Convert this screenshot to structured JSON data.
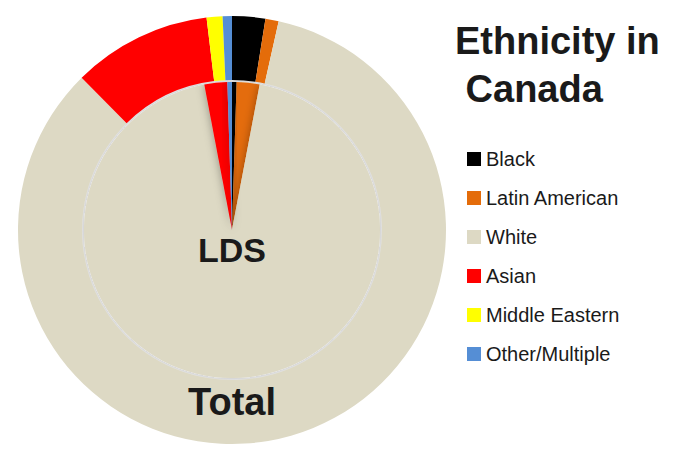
{
  "chart_data": {
    "type": "pie",
    "title": "Ethnicity in Canada",
    "categories": [
      "Black",
      "Latin American",
      "White",
      "Asian",
      "Middle Eastern",
      "Other/Multiple"
    ],
    "colors": [
      "#000000",
      "#e46c0a",
      "#ddd9c4",
      "#ff0000",
      "#ffff00",
      "#558ed5"
    ],
    "series": [
      {
        "name": "LDS",
        "values": [
          0.5,
          2.5,
          94,
          2.5,
          0,
          0.5
        ]
      },
      {
        "name": "Total",
        "values": [
          2.5,
          1,
          84.1,
          10.5,
          1.2,
          0.7
        ]
      }
    ],
    "legend": "right"
  }
}
